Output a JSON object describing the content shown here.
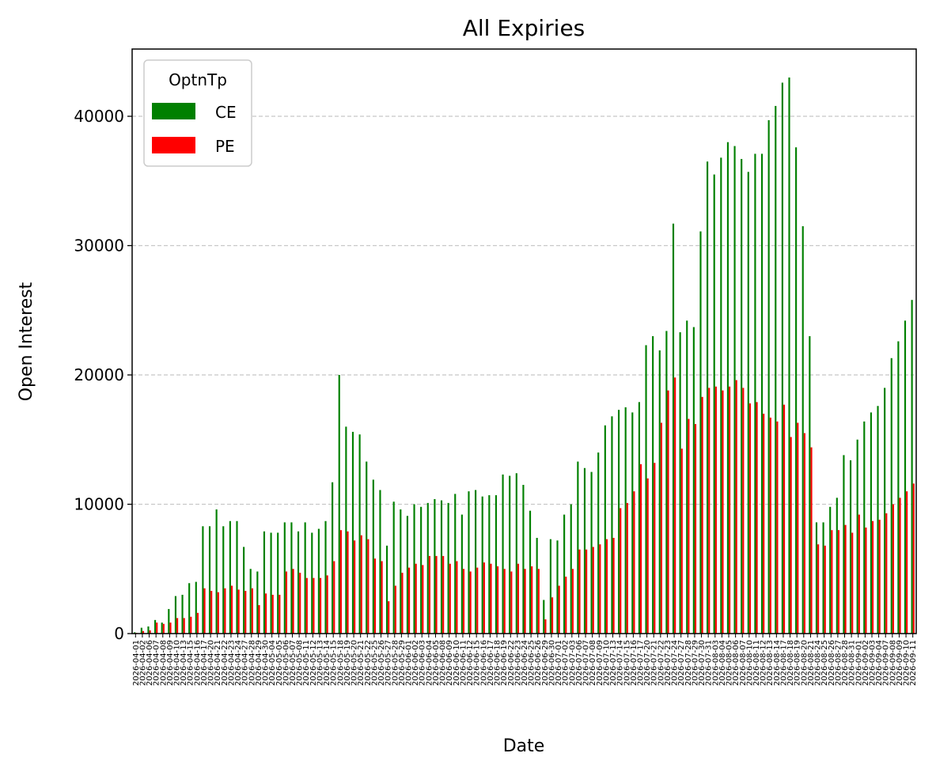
{
  "chart_data": {
    "type": "bar",
    "title": "All Expiries",
    "xlabel": "Date",
    "ylabel": "Open Interest",
    "ylim": [
      0,
      45200
    ],
    "yticks": [
      0,
      10000,
      20000,
      30000,
      40000
    ],
    "grid": "y-dashed",
    "legend": {
      "title": "OptnTp",
      "placement": "top-left"
    },
    "categories": [
      "2026-04-01",
      "2026-04-02",
      "2026-04-06",
      "2026-04-07",
      "2026-04-08",
      "2026-04-09",
      "2026-04-10",
      "2026-04-13",
      "2026-04-15",
      "2026-04-16",
      "2026-04-17",
      "2026-04-20",
      "2026-04-21",
      "2026-04-22",
      "2026-04-23",
      "2026-04-24",
      "2026-04-27",
      "2026-04-28",
      "2026-04-29",
      "2026-04-30",
      "2026-05-04",
      "2026-05-05",
      "2026-05-06",
      "2026-05-07",
      "2026-05-08",
      "2026-05-11",
      "2026-05-12",
      "2026-05-13",
      "2026-05-14",
      "2026-05-15",
      "2026-05-18",
      "2026-05-19",
      "2026-05-20",
      "2026-05-21",
      "2026-05-22",
      "2026-05-25",
      "2026-05-26",
      "2026-05-27",
      "2026-05-28",
      "2026-05-29",
      "2026-06-01",
      "2026-06-02",
      "2026-06-03",
      "2026-06-04",
      "2026-06-05",
      "2026-06-08",
      "2026-06-09",
      "2026-06-10",
      "2026-06-11",
      "2026-06-12",
      "2026-06-15",
      "2026-06-16",
      "2026-06-17",
      "2026-06-18",
      "2026-06-19",
      "2026-06-22",
      "2026-06-23",
      "2026-06-24",
      "2026-06-25",
      "2026-06-26",
      "2026-06-29",
      "2026-06-30",
      "2026-07-01",
      "2026-07-02",
      "2026-07-03",
      "2026-07-06",
      "2026-07-07",
      "2026-07-08",
      "2026-07-09",
      "2026-07-10",
      "2026-07-13",
      "2026-07-14",
      "2026-07-15",
      "2026-07-16",
      "2026-07-17",
      "2026-07-20",
      "2026-07-21",
      "2026-07-22",
      "2026-07-23",
      "2026-07-24",
      "2026-07-27",
      "2026-07-28",
      "2026-07-29",
      "2026-07-30",
      "2026-07-31",
      "2026-08-03",
      "2026-08-04",
      "2026-08-05",
      "2026-08-06",
      "2026-08-07",
      "2026-08-10",
      "2026-08-11",
      "2026-08-12",
      "2026-08-13",
      "2026-08-14",
      "2026-08-17",
      "2026-08-18",
      "2026-08-19",
      "2026-08-20",
      "2026-08-21",
      "2026-08-24",
      "2026-08-25",
      "2026-08-26",
      "2026-08-27",
      "2026-08-28",
      "2026-08-31",
      "2026-09-01",
      "2026-09-02",
      "2026-09-03",
      "2026-09-04",
      "2026-09-07",
      "2026-09-08",
      "2026-09-09",
      "2026-09-10",
      "2026-09-11"
    ],
    "series": [
      {
        "name": "CE",
        "color": "#008000",
        "values": [
          100,
          450,
          550,
          1050,
          850,
          1900,
          2900,
          3000,
          3900,
          4000,
          8300,
          8300,
          9600,
          8300,
          8700,
          8700,
          6700,
          5000,
          4800,
          7900,
          7800,
          7800,
          8600,
          8600,
          7900,
          8600,
          7800,
          8100,
          8700,
          11700,
          20000,
          16000,
          15600,
          15400,
          13300,
          11900,
          11100,
          6800,
          10200,
          9600,
          9100,
          10000,
          9800,
          10100,
          10400,
          10300,
          10100,
          10800,
          9200,
          11000,
          11100,
          10600,
          10700,
          10700,
          12300,
          12200,
          12400,
          11500,
          9500,
          7400,
          2600,
          7300,
          7200,
          9200,
          10000,
          13300,
          12800,
          12500,
          14000,
          16100,
          16800,
          17300,
          17500,
          17100,
          17900,
          22300,
          23000,
          21900,
          23400,
          31700,
          23300,
          24200,
          23700,
          31100,
          36500,
          35500,
          36800,
          38000,
          37700,
          36700,
          35700,
          37100,
          37100,
          39700,
          40800,
          42600,
          43000,
          37600,
          31500,
          23000,
          8600,
          8600,
          9800,
          10500,
          13800,
          13400,
          15000,
          16400,
          17100,
          17600,
          19000,
          21300,
          22600,
          24200,
          25800
        ]
      },
      {
        "name": "PE",
        "color": "#ff0000",
        "values": [
          50,
          200,
          250,
          850,
          750,
          850,
          1200,
          1200,
          1300,
          1600,
          3500,
          3300,
          3200,
          3500,
          3700,
          3400,
          3300,
          3500,
          2200,
          3100,
          3000,
          3000,
          4800,
          5000,
          4700,
          4300,
          4300,
          4300,
          4500,
          5600,
          8000,
          7900,
          7200,
          7600,
          7300,
          5800,
          5600,
          2500,
          3700,
          4700,
          5100,
          5400,
          5300,
          6000,
          6000,
          6000,
          5400,
          5600,
          5000,
          4800,
          5100,
          5500,
          5400,
          5200,
          5000,
          4800,
          5400,
          5000,
          5200,
          5000,
          1100,
          2800,
          3700,
          4400,
          5000,
          6500,
          6500,
          6700,
          6900,
          7300,
          7400,
          9700,
          10100,
          11000,
          13100,
          12000,
          13200,
          16300,
          18800,
          19800,
          14300,
          16600,
          16200,
          18300,
          19000,
          19100,
          18800,
          19100,
          19600,
          19000,
          17800,
          17900,
          17000,
          16700,
          16400,
          17700,
          15200,
          16300,
          15500,
          14400,
          6900,
          6800,
          8000,
          8000,
          8400,
          7800,
          9200,
          8200,
          8700,
          8800,
          9300,
          10000,
          10500,
          11000,
          11600
        ]
      }
    ]
  }
}
